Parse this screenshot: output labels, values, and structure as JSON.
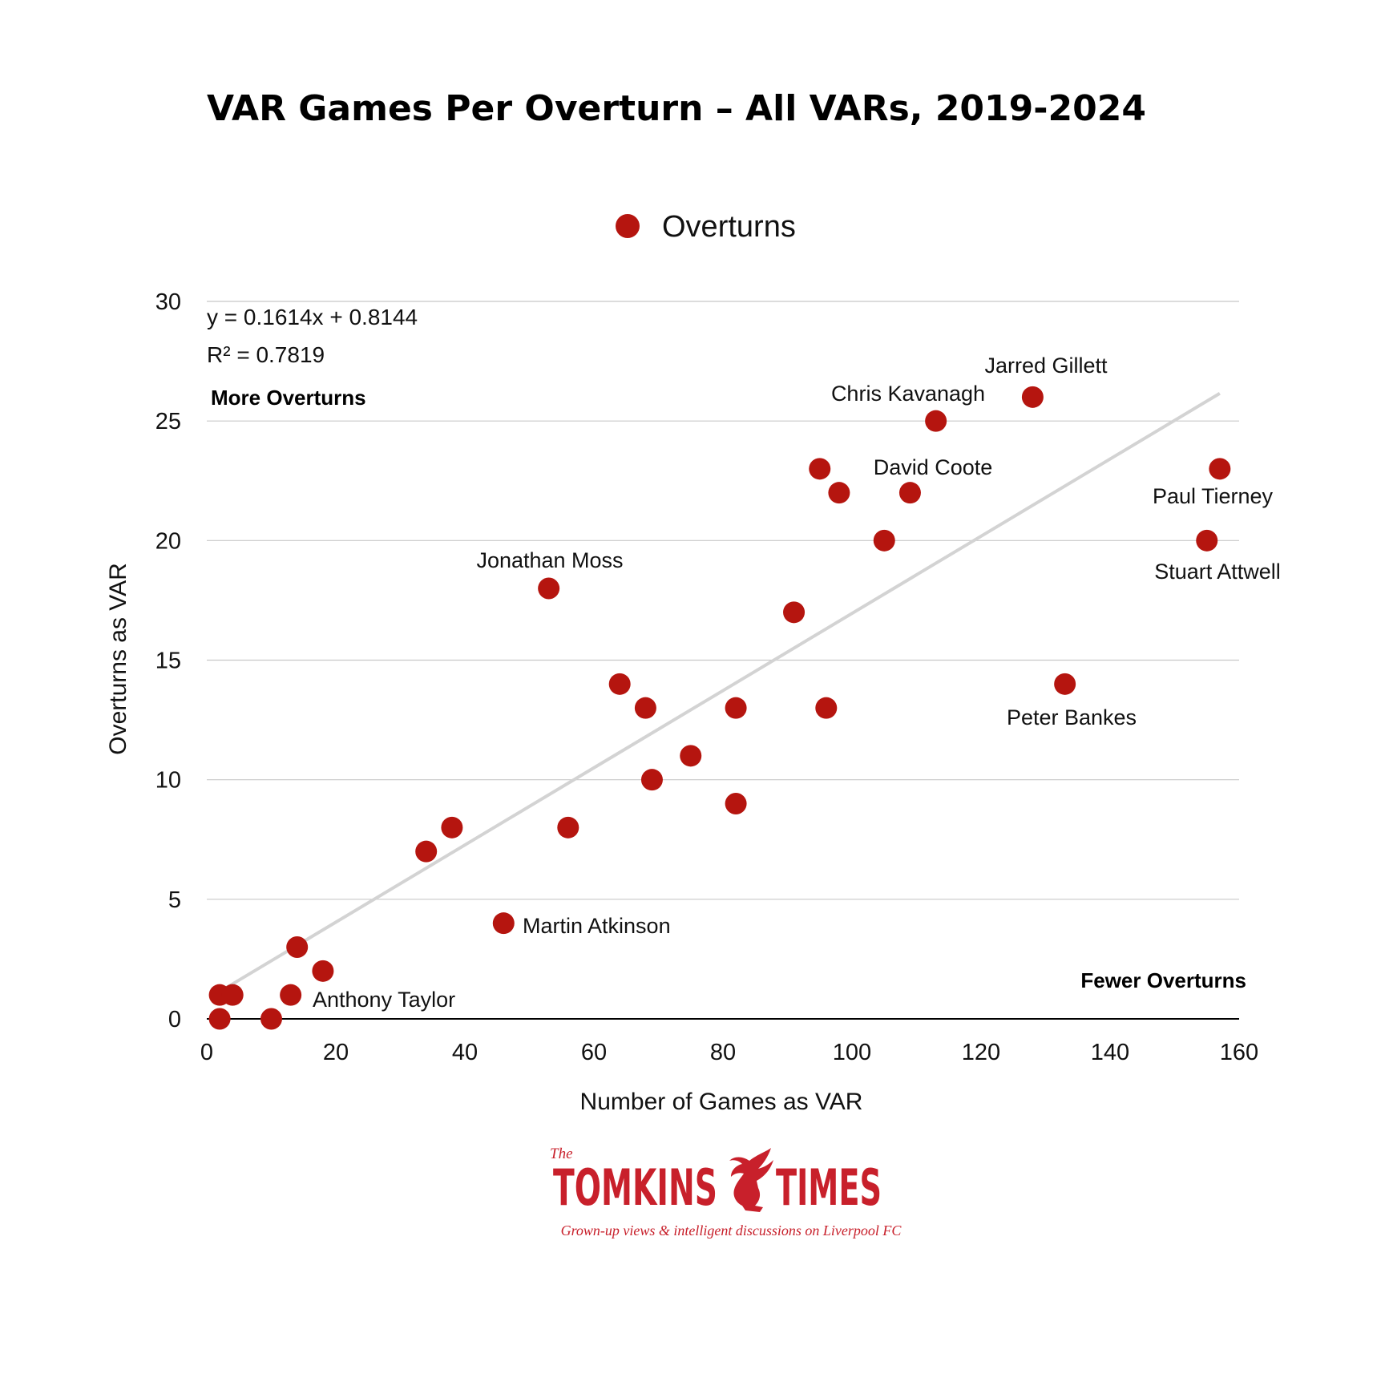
{
  "chart_data": {
    "type": "scatter",
    "title": "VAR Games Per Overturn – All VARs, 2019-2024",
    "xlabel": "Number of Games as VAR",
    "ylabel": "Overturns as VAR",
    "xlim": [
      0,
      160
    ],
    "ylim": [
      0,
      30
    ],
    "x_ticks": [
      0,
      20,
      40,
      60,
      80,
      100,
      120,
      140,
      160
    ],
    "y_ticks": [
      0,
      5,
      10,
      15,
      20,
      25,
      30
    ],
    "grid": "horizontal",
    "legend": {
      "position": "top-center",
      "entries": [
        "Overturns"
      ]
    },
    "series": [
      {
        "name": "Overturns",
        "color": "#b5150f",
        "points": [
          {
            "x": 2,
            "y": 1
          },
          {
            "x": 4,
            "y": 1
          },
          {
            "x": 2,
            "y": 0
          },
          {
            "x": 10,
            "y": 0
          },
          {
            "x": 13,
            "y": 1,
            "label": "Anthony Taylor"
          },
          {
            "x": 14,
            "y": 3
          },
          {
            "x": 18,
            "y": 2
          },
          {
            "x": 34,
            "y": 7
          },
          {
            "x": 38,
            "y": 8
          },
          {
            "x": 46,
            "y": 4,
            "label": "Martin Atkinson"
          },
          {
            "x": 53,
            "y": 18,
            "label": "Jonathan Moss"
          },
          {
            "x": 56,
            "y": 8
          },
          {
            "x": 64,
            "y": 14
          },
          {
            "x": 68,
            "y": 13
          },
          {
            "x": 69,
            "y": 10
          },
          {
            "x": 75,
            "y": 11
          },
          {
            "x": 82,
            "y": 13
          },
          {
            "x": 82,
            "y": 9
          },
          {
            "x": 91,
            "y": 17
          },
          {
            "x": 95,
            "y": 23
          },
          {
            "x": 96,
            "y": 13
          },
          {
            "x": 98,
            "y": 22
          },
          {
            "x": 105,
            "y": 20
          },
          {
            "x": 109,
            "y": 22,
            "label": "David Coote"
          },
          {
            "x": 113,
            "y": 25,
            "label": "Chris Kavanagh"
          },
          {
            "x": 128,
            "y": 26,
            "label": "Jarred Gillett"
          },
          {
            "x": 133,
            "y": 14,
            "label": "Peter Bankes"
          },
          {
            "x": 155,
            "y": 20,
            "label": "Stuart Attwell"
          },
          {
            "x": 157,
            "y": 23,
            "label": "Paul Tierney"
          }
        ]
      }
    ],
    "trendline": {
      "slope": 0.1614,
      "intercept": 0.8144,
      "x_range": [
        2,
        157
      ],
      "color": "#d3d3d3",
      "equation_text": "y = 0.1614x + 0.8144",
      "r2_text": "R² = 0.7819"
    },
    "annotations": {
      "top_left": "More Overturns",
      "bottom_right": "Fewer Overturns"
    }
  },
  "branding": {
    "the": "The",
    "name_left": "TOMKINS",
    "name_right": "TIMES",
    "tagline": "Grown-up views & intelligent discussions on Liverpool FC",
    "color": "#c8202b"
  }
}
